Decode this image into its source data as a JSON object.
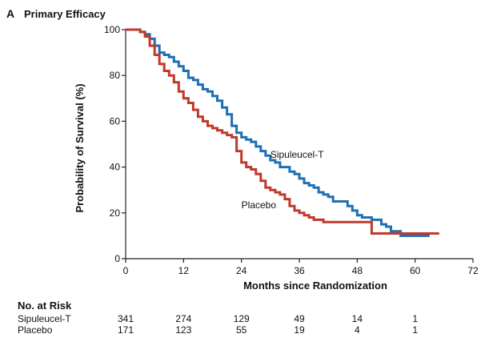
{
  "panel": {
    "letter": "A",
    "title": "Primary Efficacy"
  },
  "colors": {
    "sipuleucel": "#1f6fb3",
    "placebo": "#c0392b",
    "axis": "#222222"
  },
  "chart_data": {
    "type": "line",
    "subtype": "kaplan-meier step curve",
    "title": "Primary Efficacy",
    "xlabel": "Months since Randomization",
    "ylabel": "Probability of Survival (%)",
    "xlim": [
      0,
      72
    ],
    "ylim": [
      0,
      100
    ],
    "xticks": [
      0,
      12,
      24,
      36,
      48,
      60,
      72
    ],
    "yticks": [
      0,
      20,
      40,
      60,
      80,
      100
    ],
    "grid": false,
    "series": [
      {
        "name": "Sipuleucel-T",
        "color": "#1f6fb3",
        "points": [
          [
            0,
            100
          ],
          [
            2,
            100
          ],
          [
            3,
            99
          ],
          [
            4,
            98
          ],
          [
            5,
            96
          ],
          [
            6,
            93
          ],
          [
            7,
            90
          ],
          [
            8,
            89
          ],
          [
            9,
            88
          ],
          [
            10,
            86
          ],
          [
            11,
            84
          ],
          [
            12,
            82
          ],
          [
            13,
            79
          ],
          [
            14,
            78
          ],
          [
            15,
            76
          ],
          [
            16,
            74
          ],
          [
            17,
            73
          ],
          [
            18,
            71
          ],
          [
            19,
            69
          ],
          [
            20,
            66
          ],
          [
            21,
            63
          ],
          [
            22,
            58
          ],
          [
            23,
            55
          ],
          [
            24,
            53
          ],
          [
            25,
            52
          ],
          [
            26,
            51
          ],
          [
            27,
            49
          ],
          [
            28,
            47
          ],
          [
            29,
            45
          ],
          [
            30,
            43
          ],
          [
            31,
            42
          ],
          [
            32,
            40
          ],
          [
            33,
            40
          ],
          [
            34,
            38
          ],
          [
            35,
            37
          ],
          [
            36,
            35
          ],
          [
            37,
            33
          ],
          [
            38,
            32
          ],
          [
            39,
            31
          ],
          [
            40,
            29
          ],
          [
            41,
            28
          ],
          [
            42,
            27
          ],
          [
            43,
            25
          ],
          [
            44,
            25
          ],
          [
            45,
            25
          ],
          [
            46,
            23
          ],
          [
            47,
            21
          ],
          [
            48,
            19
          ],
          [
            49,
            18
          ],
          [
            50,
            18
          ],
          [
            51,
            17
          ],
          [
            52,
            17
          ],
          [
            53,
            15
          ],
          [
            54,
            14
          ],
          [
            55,
            12
          ],
          [
            56,
            12
          ],
          [
            57,
            10
          ],
          [
            58,
            10
          ],
          [
            59,
            10
          ],
          [
            60,
            10
          ],
          [
            61,
            10
          ],
          [
            62,
            10
          ],
          [
            63,
            10
          ]
        ]
      },
      {
        "name": "Placebo",
        "color": "#c0392b",
        "points": [
          [
            0,
            100
          ],
          [
            2,
            100
          ],
          [
            3,
            99
          ],
          [
            4,
            97
          ],
          [
            5,
            93
          ],
          [
            6,
            89
          ],
          [
            7,
            85
          ],
          [
            8,
            82
          ],
          [
            9,
            80
          ],
          [
            10,
            77
          ],
          [
            11,
            73
          ],
          [
            12,
            70
          ],
          [
            13,
            68
          ],
          [
            14,
            65
          ],
          [
            15,
            62
          ],
          [
            16,
            60
          ],
          [
            17,
            58
          ],
          [
            18,
            57
          ],
          [
            19,
            56
          ],
          [
            20,
            55
          ],
          [
            21,
            54
          ],
          [
            22,
            53
          ],
          [
            23,
            47
          ],
          [
            24,
            42
          ],
          [
            25,
            40
          ],
          [
            26,
            39
          ],
          [
            27,
            37
          ],
          [
            28,
            34
          ],
          [
            29,
            31
          ],
          [
            30,
            30
          ],
          [
            31,
            29
          ],
          [
            32,
            28
          ],
          [
            33,
            26
          ],
          [
            34,
            23
          ],
          [
            35,
            21
          ],
          [
            36,
            20
          ],
          [
            37,
            19
          ],
          [
            38,
            18
          ],
          [
            39,
            17
          ],
          [
            40,
            17
          ],
          [
            41,
            16
          ],
          [
            42,
            16
          ],
          [
            45,
            16
          ],
          [
            48,
            16
          ],
          [
            51,
            16
          ],
          [
            51,
            11
          ],
          [
            55,
            11
          ],
          [
            60,
            11
          ],
          [
            65,
            11
          ]
        ]
      }
    ],
    "annotations": [
      {
        "text": "Sipuleucel-T",
        "x": 30,
        "y": 44
      },
      {
        "text": "Placebo",
        "x": 24,
        "y": 22
      }
    ]
  },
  "risk_table": {
    "title": "No. at Risk",
    "times": [
      0,
      12,
      24,
      36,
      48,
      60
    ],
    "rows": [
      {
        "label": "Sipuleucel-T",
        "values": [
          "341",
          "274",
          "129",
          "49",
          "14",
          "1"
        ]
      },
      {
        "label": "Placebo",
        "values": [
          "171",
          "123",
          "55",
          "19",
          "4",
          "1"
        ]
      }
    ]
  }
}
